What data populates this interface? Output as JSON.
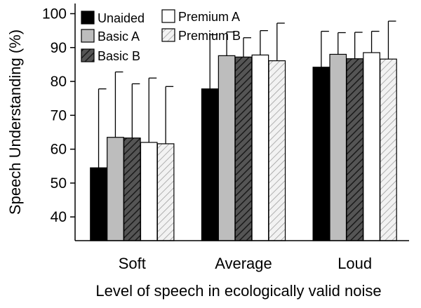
{
  "chart_data": {
    "type": "bar",
    "title": "",
    "xlabel": "Level of speech in ecologically valid noise",
    "ylabel": "Speech Understanding (%)",
    "ylim": [
      33,
      103
    ],
    "yticks": [
      40,
      50,
      60,
      70,
      80,
      90,
      100
    ],
    "grid": false,
    "legend_position": "top-left",
    "categories": [
      "Soft",
      "Average",
      "Loud"
    ],
    "series": [
      {
        "name": "Unaided",
        "fill": "solid-black",
        "values": [
          54.5,
          77.8,
          84.2
        ],
        "error_upper": [
          77.8,
          93.8,
          94.8
        ]
      },
      {
        "name": "Basic A",
        "fill": "solid-gray",
        "values": [
          63.5,
          87.6,
          88.0
        ],
        "error_upper": [
          82.8,
          94.6,
          94.4
        ]
      },
      {
        "name": "Basic B",
        "fill": "hatched-dark",
        "values": [
          63.3,
          87.2,
          86.7
        ],
        "error_upper": [
          79.3,
          92.9,
          94.5
        ]
      },
      {
        "name": "Premium A",
        "fill": "solid-white",
        "values": [
          62.0,
          87.8,
          88.5
        ],
        "error_upper": [
          81.0,
          95.0,
          94.8
        ]
      },
      {
        "name": "Premium B",
        "fill": "hatched-light",
        "values": [
          61.6,
          86.1,
          86.6
        ],
        "error_upper": [
          78.5,
          97.2,
          97.8
        ]
      }
    ],
    "colors": {
      "black": "#000000",
      "gray": "#bdbdbd",
      "dark_hatch_bg": "#555555",
      "dark_hatch_line": "#1a1a1a",
      "light_hatch_bg": "#f2f2f2",
      "light_hatch_line": "#9a9a9a",
      "white": "#ffffff"
    }
  }
}
